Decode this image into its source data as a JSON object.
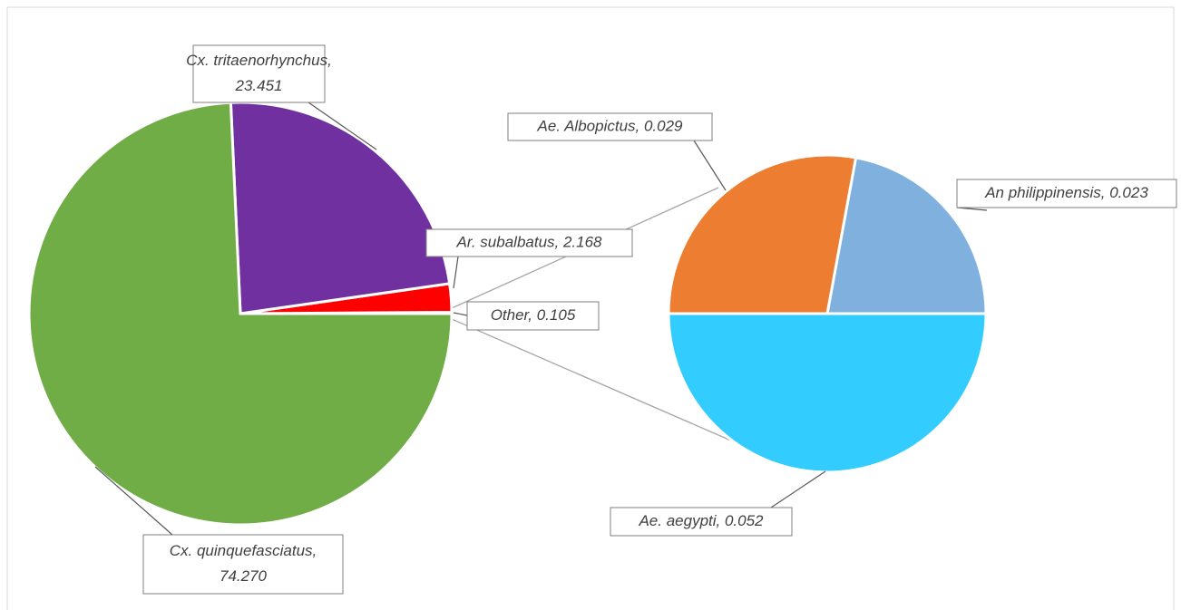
{
  "chart_data": {
    "type": "pie-of-pie",
    "main": {
      "values": [
        0.105,
        2.168,
        23.451,
        74.27
      ],
      "value_labels": [
        [
          "Other, 0.105"
        ],
        [
          "Ar. subalbatus, 2.168"
        ],
        [
          "Cx. tritaenorhynchus,",
          "23.451"
        ],
        [
          "Cx. quinquefasciatus,",
          "74.270"
        ]
      ],
      "colors": [
        "#a5a5a5",
        "#ff0000",
        "#7030a0",
        "#70ad47"
      ]
    },
    "secondary": {
      "values": [
        0.023,
        0.029,
        0.052
      ],
      "value_labels": [
        [
          "An philippinensis, 0.023"
        ],
        [
          "Ae. Albopictus, 0.029"
        ],
        [
          "Ae. aegypti, 0.052"
        ]
      ],
      "colors": [
        "#7fb0de",
        "#ed7d31",
        "#33ccff"
      ]
    }
  }
}
